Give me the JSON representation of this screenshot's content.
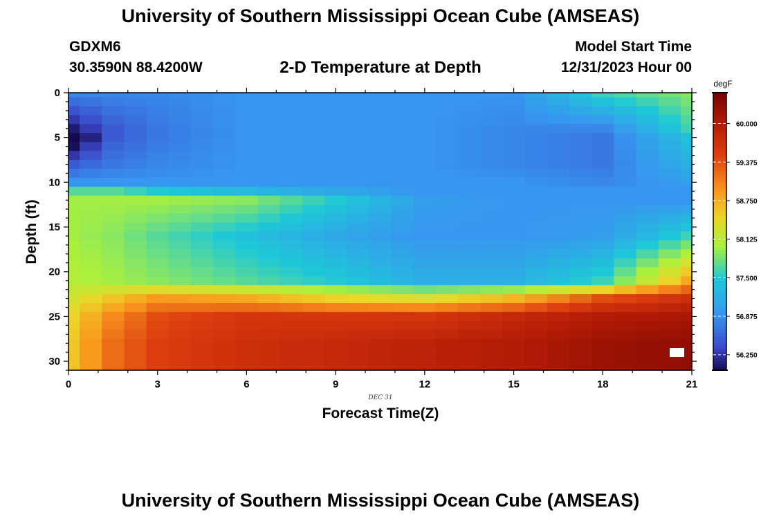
{
  "header": {
    "title": "University of Southern Mississippi Ocean Cube (AMSEAS)",
    "station_id": "GDXM6",
    "station_coords": "30.3590N  88.4200W",
    "subtitle": "2-D Temperature at Depth",
    "model_start_label": "Model Start Time",
    "model_start_value": "12/31/2023 Hour 00"
  },
  "footer": {
    "title": "University of Southern Mississippi Ocean Cube (AMSEAS)"
  },
  "chart_data": {
    "type": "heatmap",
    "title": "2-D Temperature at Depth",
    "xlabel": "Forecast Time(Z)",
    "ylabel": "Depth (ft)",
    "x_date_label": "DEC 31",
    "xlim": [
      0,
      21
    ],
    "ylim": [
      0,
      31
    ],
    "y_inverted": true,
    "x_ticks": [
      0,
      3,
      6,
      9,
      12,
      15,
      18,
      21
    ],
    "x_tick_labels": [
      "0",
      "3",
      "6",
      "9",
      "12",
      "15",
      "18",
      "21"
    ],
    "y_ticks": [
      0,
      5,
      10,
      15,
      20,
      25,
      30
    ],
    "y_tick_labels": [
      "0",
      "5",
      "10",
      "15",
      "20",
      "25",
      "30"
    ],
    "colorbar": {
      "unit": "degF",
      "min": 56.0,
      "max": 60.5,
      "ticks": [
        56.25,
        56.875,
        57.5,
        58.125,
        58.75,
        59.375,
        60.0
      ],
      "tick_labels": [
        "56.250",
        "56.875",
        "57.500",
        "58.125",
        "58.750",
        "59.375",
        "60.000"
      ]
    },
    "x": [
      0,
      0.75,
      1.5,
      2.25,
      3,
      3.75,
      4.5,
      5.25,
      6,
      6.75,
      7.5,
      8.25,
      9,
      9.75,
      10.5,
      11.25,
      12,
      12.75,
      13.5,
      14.25,
      15,
      15.75,
      16.5,
      17.25,
      18,
      18.75,
      19.5,
      20.25,
      21
    ],
    "depth": [
      0,
      1,
      2,
      3,
      4,
      5,
      6,
      7,
      8,
      9,
      10,
      11,
      12,
      13,
      14,
      15,
      16,
      17,
      18,
      19,
      20,
      21,
      22,
      23,
      24,
      25,
      26,
      27,
      28,
      29,
      30,
      31
    ],
    "profiles": [
      {
        "x": 0,
        "depth": [
          0,
          4,
          5,
          8,
          10,
          11,
          12,
          16,
          21,
          23,
          25,
          28,
          31
        ],
        "temp": [
          56.8,
          56.1,
          55.8,
          56.5,
          56.9,
          57.7,
          58.0,
          58.0,
          58.1,
          58.3,
          58.5,
          58.6,
          58.6
        ]
      },
      {
        "x": 1.5,
        "depth": [
          0,
          4,
          5,
          8,
          10,
          11,
          12,
          16,
          21,
          23,
          25,
          28,
          31
        ],
        "temp": [
          56.8,
          56.5,
          56.5,
          56.7,
          56.9,
          57.7,
          58.0,
          57.9,
          58.0,
          58.6,
          59.0,
          59.2,
          59.2
        ]
      },
      {
        "x": 3,
        "depth": [
          0,
          4,
          5,
          8,
          10,
          11,
          12,
          16,
          21,
          23,
          25,
          28,
          31
        ],
        "temp": [
          56.8,
          56.7,
          56.7,
          56.8,
          56.9,
          57.5,
          58.0,
          57.7,
          57.9,
          58.9,
          59.4,
          59.5,
          59.5
        ]
      },
      {
        "x": 6,
        "depth": [
          0,
          4,
          5,
          8,
          10,
          11,
          12,
          16,
          21,
          23,
          25,
          28,
          31
        ],
        "temp": [
          56.9,
          56.9,
          56.9,
          56.9,
          56.9,
          57.3,
          57.9,
          57.4,
          57.7,
          58.8,
          59.6,
          59.7,
          59.7
        ]
      },
      {
        "x": 9,
        "depth": [
          0,
          4,
          5,
          8,
          10,
          11,
          12,
          16,
          21,
          23,
          25,
          28,
          31
        ],
        "temp": [
          56.9,
          56.9,
          56.9,
          56.9,
          56.9,
          57.1,
          57.5,
          57.1,
          57.5,
          58.5,
          59.6,
          59.8,
          59.8
        ]
      },
      {
        "x": 12,
        "depth": [
          0,
          4,
          5,
          8,
          10,
          11,
          12,
          16,
          21,
          23,
          25,
          28,
          31
        ],
        "temp": [
          56.9,
          56.9,
          56.9,
          56.9,
          56.9,
          56.9,
          57.0,
          56.9,
          57.2,
          58.4,
          59.6,
          59.9,
          59.9
        ]
      },
      {
        "x": 15,
        "depth": [
          0,
          4,
          5,
          8,
          10,
          11,
          12,
          16,
          21,
          23,
          25,
          28,
          31
        ],
        "temp": [
          56.9,
          56.8,
          56.8,
          56.8,
          56.9,
          56.9,
          56.9,
          56.9,
          57.2,
          58.7,
          59.8,
          60.0,
          60.0
        ]
      },
      {
        "x": 18,
        "depth": [
          0,
          4,
          5,
          8,
          10,
          11,
          12,
          16,
          21,
          23,
          25,
          28,
          31
        ],
        "temp": [
          57.6,
          56.8,
          56.7,
          56.7,
          56.8,
          56.9,
          56.9,
          57.0,
          57.6,
          59.4,
          60.0,
          60.2,
          60.2
        ]
      },
      {
        "x": 21,
        "depth": [
          0,
          4,
          5,
          8,
          10,
          11,
          12,
          16,
          21,
          23,
          25,
          28,
          31
        ],
        "temp": [
          57.9,
          57.6,
          57.4,
          57.2,
          57.0,
          56.9,
          56.9,
          57.6,
          58.8,
          59.7,
          60.1,
          60.3,
          60.3
        ]
      }
    ]
  }
}
